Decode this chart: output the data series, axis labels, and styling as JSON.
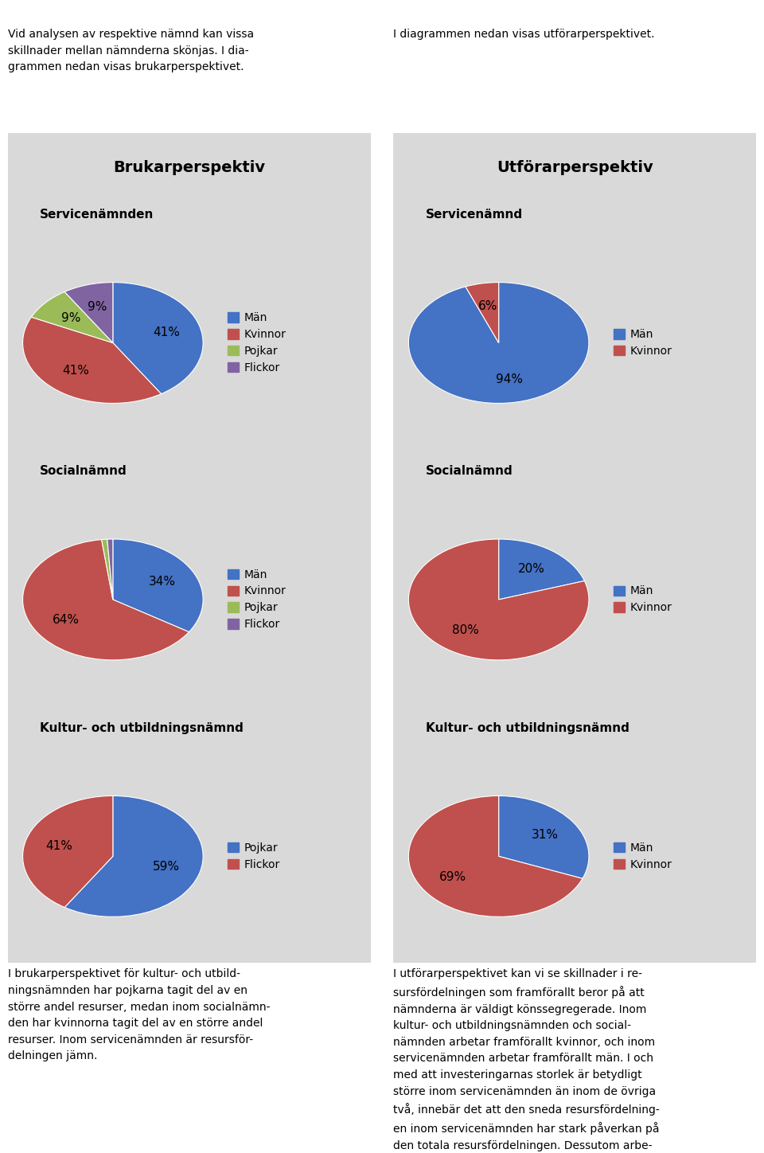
{
  "bg_color": "#d9d9d9",
  "page_bg": "#ffffff",
  "blue": "#4472c4",
  "red": "#c0504d",
  "green": "#9bbb59",
  "purple": "#8064a2",
  "left_title": "Brukarperspektiv",
  "right_title": "Utförarperspektiv",
  "charts": {
    "left": [
      {
        "title": "Kultur- och utbildningsnämnd",
        "values": [
          59,
          41
        ],
        "colors": [
          "#4472c4",
          "#c0504d"
        ],
        "pct_labels": [
          "59%",
          "41%"
        ],
        "legend": [
          "Pojkar",
          "Flickor"
        ]
      },
      {
        "title": "Socialnämnd",
        "values": [
          34,
          64,
          1,
          1
        ],
        "colors": [
          "#4472c4",
          "#c0504d",
          "#9bbb59",
          "#8064a2"
        ],
        "pct_labels": [
          "34%",
          "64%",
          "",
          ""
        ],
        "legend": [
          "Män",
          "Kvinnor",
          "Pojkar",
          "Flickor"
        ]
      },
      {
        "title": "Servicenämnden",
        "values": [
          41,
          41,
          9,
          9
        ],
        "colors": [
          "#4472c4",
          "#c0504d",
          "#9bbb59",
          "#8064a2"
        ],
        "pct_labels": [
          "41%",
          "41%",
          "9%",
          "9%"
        ],
        "legend": [
          "Män",
          "Kvinnor",
          "Pojkar",
          "Flickor"
        ]
      }
    ],
    "right": [
      {
        "title": "Kultur- och utbildningsnämnd",
        "values": [
          31,
          69
        ],
        "colors": [
          "#4472c4",
          "#c0504d"
        ],
        "pct_labels": [
          "31%",
          "69%"
        ],
        "legend": [
          "Män",
          "Kvinnor"
        ]
      },
      {
        "title": "Socialnämnd",
        "values": [
          20,
          80
        ],
        "colors": [
          "#4472c4",
          "#c0504d"
        ],
        "pct_labels": [
          "20%",
          "80%"
        ],
        "legend": [
          "Män",
          "Kvinnor"
        ]
      },
      {
        "title": "Servicenämnd",
        "values": [
          94,
          6
        ],
        "colors": [
          "#4472c4",
          "#c0504d"
        ],
        "pct_labels": [
          "94%",
          "6%"
        ],
        "legend": [
          "Män",
          "Kvinnor"
        ]
      }
    ]
  },
  "top_left_text": "Vid analysen av respektive nämnd kan vissa\nskillnader mellan nämnderna skönjas. I dia-\ngrammen nedan visas brukarperspektivet.",
  "top_right_text": "I diagrammen nedan visas utförarperspektivet.",
  "bottom_left_text": "I brukarperspektivet för kultur- och utbild-\nningsnämnden har pojkarna tagit del av en\nstörre andel resurser, medan inom socialnämn-\nden har kvinnorna tagit del av en större andel\nresurser. Inom servicenämnden är resursför-\ndelningen jämn.",
  "bottom_right_text": "I utförarperspektivet kan vi se skillnader i re-\nsursfördelningen som framförallt beror på att\nnämnderna är väldigt könssegregerade. Inom\nkultur- och utbildningsnämnden och social-\nnämnden arbetar framförallt kvinnor, och inom\nservicenämnden arbetar framförallt män. I och\nmed att investeringarnas storlek är betydligt\nstörre inom servicenämnden än inom de övriga\ntvå, innebär det att den sneda resursfördelning-\nen inom servicenämnden har stark påverkan på\nden totala resursfördelningen. Dessutom arbe-\ntar betydligt färre personer inom servicenämn-"
}
